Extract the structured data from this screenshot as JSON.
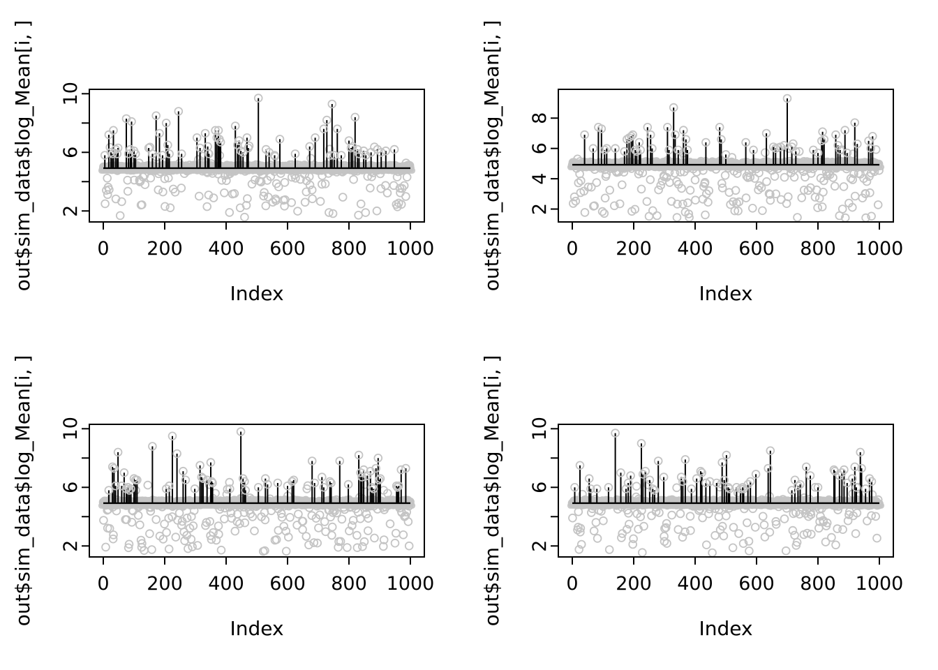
{
  "figure_title": "",
  "colors": {
    "background": "#ffffff",
    "axis": "#000000",
    "text": "#000000",
    "spike": "#000000",
    "point_gray": "#c4c4c4",
    "band_gray": "#cacaca"
  },
  "layout_labels": {
    "x_axis_title": "Index",
    "y_axis_title": "out$sim_data$log_Mean[i, ]"
  },
  "chart_data": [
    {
      "name": "top-left",
      "type": "scatter",
      "style": "spikes-with-open-circles",
      "xlabel": "Index",
      "ylabel": "out$sim_data$log_Mean[i, ]",
      "xlim": [
        0,
        1000
      ],
      "ylim": [
        1.25,
        10.3
      ],
      "x_ticks": [
        0,
        200,
        400,
        600,
        800,
        1000
      ],
      "x_tick_labels": [
        "0",
        "200",
        "400",
        "600",
        "800",
        "1000"
      ],
      "y_ticks": [
        2,
        4,
        6,
        8,
        10
      ],
      "y_tick_labels": [
        "2",
        "",
        "6",
        "",
        "10"
      ],
      "grid": false,
      "legend": "none",
      "baseline": 4.97,
      "n_points": 1000,
      "spikes": [
        [
          5,
          5.8
        ],
        [
          18,
          7.2
        ],
        [
          25,
          6.0
        ],
        [
          30,
          5.9
        ],
        [
          33,
          7.5
        ],
        [
          40,
          6.2
        ],
        [
          45,
          5.9
        ],
        [
          48,
          6.3
        ],
        [
          75,
          8.3
        ],
        [
          82,
          5.9
        ],
        [
          88,
          6.2
        ],
        [
          92,
          8.1
        ],
        [
          100,
          6.1
        ],
        [
          105,
          5.9
        ],
        [
          148,
          6.3
        ],
        [
          160,
          5.9
        ],
        [
          172,
          8.5
        ],
        [
          183,
          7.3
        ],
        [
          193,
          5.8
        ],
        [
          205,
          8.0
        ],
        [
          210,
          6.5
        ],
        [
          215,
          5.9
        ],
        [
          245,
          8.8
        ],
        [
          255,
          5.9
        ],
        [
          305,
          7.0
        ],
        [
          315,
          6.3
        ],
        [
          332,
          7.3
        ],
        [
          340,
          6.4
        ],
        [
          344,
          5.9
        ],
        [
          365,
          7.5
        ],
        [
          370,
          7.0
        ],
        [
          375,
          7.5
        ],
        [
          378,
          6.9
        ],
        [
          382,
          6.7
        ],
        [
          430,
          7.8
        ],
        [
          437,
          6.5
        ],
        [
          442,
          6.8
        ],
        [
          448,
          6.1
        ],
        [
          455,
          6.0
        ],
        [
          468,
          7.0
        ],
        [
          472,
          6.3
        ],
        [
          505,
          9.7
        ],
        [
          530,
          6.2
        ],
        [
          540,
          6.0
        ],
        [
          558,
          5.8
        ],
        [
          575,
          6.9
        ],
        [
          625,
          5.9
        ],
        [
          672,
          6.4
        ],
        [
          690,
          7.0
        ],
        [
          718,
          7.6
        ],
        [
          728,
          8.2
        ],
        [
          740,
          5.8
        ],
        [
          745,
          9.3
        ],
        [
          752,
          5.8
        ],
        [
          762,
          7.6
        ],
        [
          775,
          5.8
        ],
        [
          800,
          6.8
        ],
        [
          807,
          6.3
        ],
        [
          812,
          6.4
        ],
        [
          820,
          8.4
        ],
        [
          828,
          6.2
        ],
        [
          833,
          5.9
        ],
        [
          848,
          6.1
        ],
        [
          855,
          5.8
        ],
        [
          872,
          6.0
        ],
        [
          893,
          6.2
        ],
        [
          905,
          6.0
        ],
        [
          920,
          6.1
        ],
        [
          948,
          6.2
        ]
      ],
      "scatter": {
        "seed": 11,
        "p_below": 0.16,
        "below_base": 4.72,
        "below_spread": 3.2,
        "below_power": 1.7,
        "p_above": 0.022,
        "above_spread": 1.3,
        "band_center": 4.95,
        "band_jitter": 0.14
      }
    },
    {
      "name": "top-right",
      "type": "scatter",
      "style": "spikes-with-open-circles",
      "xlabel": "Index",
      "ylabel": "out$sim_data$log_Mean[i, ]",
      "xlim": [
        0,
        1000
      ],
      "ylim": [
        1.15,
        9.9
      ],
      "x_ticks": [
        0,
        200,
        400,
        600,
        800,
        1000
      ],
      "x_tick_labels": [
        "0",
        "200",
        "400",
        "600",
        "800",
        "1000"
      ],
      "y_ticks": [
        2,
        4,
        6,
        8
      ],
      "y_tick_labels": [
        "2",
        "4",
        "6",
        "8"
      ],
      "grid": false,
      "legend": "none",
      "baseline": 4.97,
      "n_points": 1000,
      "spikes": [
        [
          40,
          6.9
        ],
        [
          68,
          6.0
        ],
        [
          85,
          7.4
        ],
        [
          95,
          7.3
        ],
        [
          105,
          5.9
        ],
        [
          112,
          6.0
        ],
        [
          140,
          6.0
        ],
        [
          170,
          5.8
        ],
        [
          178,
          6.6
        ],
        [
          185,
          6.7
        ],
        [
          192,
          6.8
        ],
        [
          197,
          6.9
        ],
        [
          205,
          5.9
        ],
        [
          210,
          5.8
        ],
        [
          218,
          6.4
        ],
        [
          222,
          5.9
        ],
        [
          245,
          7.4
        ],
        [
          255,
          6.9
        ],
        [
          260,
          6.0
        ],
        [
          310,
          7.4
        ],
        [
          315,
          5.9
        ],
        [
          330,
          8.7
        ],
        [
          335,
          6.9
        ],
        [
          345,
          5.9
        ],
        [
          362,
          7.2
        ],
        [
          370,
          6.6
        ],
        [
          375,
          5.9
        ],
        [
          435,
          6.4
        ],
        [
          480,
          7.4
        ],
        [
          485,
          6.6
        ],
        [
          500,
          5.6
        ],
        [
          565,
          6.4
        ],
        [
          590,
          5.9
        ],
        [
          632,
          7.0
        ],
        [
          655,
          6.1
        ],
        [
          662,
          6.0
        ],
        [
          678,
          6.1
        ],
        [
          690,
          6.2
        ],
        [
          700,
          9.3
        ],
        [
          715,
          6.1
        ],
        [
          728,
          5.8
        ],
        [
          785,
          5.9
        ],
        [
          800,
          5.7
        ],
        [
          812,
          6.5
        ],
        [
          815,
          7.1
        ],
        [
          820,
          6.6
        ],
        [
          858,
          6.9
        ],
        [
          865,
          6.2
        ],
        [
          872,
          5.9
        ],
        [
          888,
          7.2
        ],
        [
          895,
          5.7
        ],
        [
          920,
          7.7
        ],
        [
          928,
          6.3
        ],
        [
          965,
          6.5
        ],
        [
          972,
          6.0
        ],
        [
          978,
          6.8
        ]
      ],
      "scatter": {
        "seed": 22,
        "p_below": 0.17,
        "below_base": 4.7,
        "below_spread": 3.3,
        "below_power": 1.6,
        "p_above": 0.02,
        "above_spread": 1.2,
        "band_center": 4.95,
        "band_jitter": 0.14
      }
    },
    {
      "name": "bottom-left",
      "type": "scatter",
      "style": "spikes-with-open-circles",
      "xlabel": "Index",
      "ylabel": "out$sim_data$log_Mean[i, ]",
      "xlim": [
        0,
        1000
      ],
      "ylim": [
        1.25,
        10.3
      ],
      "x_ticks": [
        0,
        200,
        400,
        600,
        800,
        1000
      ],
      "x_tick_labels": [
        "0",
        "200",
        "400",
        "600",
        "800",
        "1000"
      ],
      "y_ticks": [
        2,
        4,
        6,
        8,
        10
      ],
      "y_tick_labels": [
        "2",
        "",
        "6",
        "",
        "10"
      ],
      "grid": false,
      "legend": "none",
      "baseline": 4.97,
      "n_points": 1000,
      "spikes": [
        [
          18,
          5.8
        ],
        [
          30,
          7.4
        ],
        [
          35,
          7.3
        ],
        [
          40,
          6.1
        ],
        [
          48,
          8.4
        ],
        [
          60,
          6.1
        ],
        [
          68,
          7.0
        ],
        [
          75,
          5.9
        ],
        [
          80,
          6.0
        ],
        [
          85,
          5.8
        ],
        [
          90,
          5.9
        ],
        [
          100,
          6.6
        ],
        [
          105,
          6.5
        ],
        [
          110,
          6.5
        ],
        [
          160,
          8.8
        ],
        [
          205,
          5.9
        ],
        [
          215,
          6.1
        ],
        [
          225,
          9.5
        ],
        [
          240,
          8.3
        ],
        [
          260,
          7.1
        ],
        [
          268,
          6.5
        ],
        [
          298,
          5.9
        ],
        [
          315,
          7.5
        ],
        [
          320,
          6.7
        ],
        [
          325,
          6.6
        ],
        [
          338,
          6.5
        ],
        [
          350,
          7.7
        ],
        [
          353,
          6.4
        ],
        [
          356,
          6.3
        ],
        [
          412,
          5.9
        ],
        [
          448,
          9.8
        ],
        [
          455,
          6.6
        ],
        [
          460,
          6.4
        ],
        [
          463,
          5.8
        ],
        [
          505,
          6.0
        ],
        [
          528,
          6.6
        ],
        [
          535,
          6.2
        ],
        [
          568,
          6.3
        ],
        [
          600,
          6.1
        ],
        [
          615,
          6.4
        ],
        [
          620,
          6.5
        ],
        [
          680,
          7.8
        ],
        [
          688,
          6.3
        ],
        [
          712,
          6.7
        ],
        [
          718,
          6.0
        ],
        [
          738,
          6.4
        ],
        [
          742,
          6.3
        ],
        [
          770,
          7.8
        ],
        [
          798,
          6.2
        ],
        [
          832,
          8.2
        ],
        [
          838,
          7.0
        ],
        [
          842,
          6.7
        ],
        [
          848,
          7.2
        ],
        [
          860,
          6.8
        ],
        [
          870,
          7.1
        ],
        [
          875,
          6.0
        ],
        [
          880,
          5.9
        ],
        [
          888,
          7.3
        ],
        [
          895,
          8.0
        ],
        [
          898,
          6.5
        ],
        [
          902,
          6.6
        ],
        [
          955,
          6.1
        ],
        [
          958,
          6.0
        ],
        [
          962,
          6.1
        ],
        [
          970,
          7.2
        ],
        [
          985,
          7.3
        ]
      ],
      "scatter": {
        "seed": 33,
        "p_below": 0.17,
        "below_base": 4.72,
        "below_spread": 3.1,
        "below_power": 1.7,
        "p_above": 0.022,
        "above_spread": 1.2,
        "band_center": 4.95,
        "band_jitter": 0.14
      }
    },
    {
      "name": "bottom-right",
      "type": "scatter",
      "style": "spikes-with-open-circles",
      "xlabel": "Index",
      "ylabel": "out$sim_data$log_Mean[i, ]",
      "xlim": [
        0,
        1000
      ],
      "ylim": [
        1.25,
        10.3
      ],
      "x_ticks": [
        0,
        200,
        400,
        600,
        800,
        1000
      ],
      "x_tick_labels": [
        "0",
        "200",
        "400",
        "600",
        "800",
        "1000"
      ],
      "y_ticks": [
        2,
        4,
        6,
        8,
        10
      ],
      "y_tick_labels": [
        "2",
        "",
        "6",
        "",
        "10"
      ],
      "grid": false,
      "legend": "none",
      "baseline": 4.97,
      "n_points": 1000,
      "spikes": [
        [
          8,
          6.0
        ],
        [
          25,
          7.5
        ],
        [
          55,
          6.6
        ],
        [
          60,
          5.9
        ],
        [
          80,
          5.9
        ],
        [
          118,
          6.0
        ],
        [
          140,
          9.7
        ],
        [
          158,
          7.0
        ],
        [
          175,
          5.9
        ],
        [
          182,
          6.3
        ],
        [
          190,
          6.8
        ],
        [
          225,
          9.0
        ],
        [
          230,
          6.9
        ],
        [
          238,
          7.1
        ],
        [
          252,
          6.5
        ],
        [
          262,
          5.9
        ],
        [
          268,
          5.8
        ],
        [
          280,
          7.8
        ],
        [
          298,
          6.7
        ],
        [
          355,
          6.7
        ],
        [
          360,
          6.4
        ],
        [
          368,
          7.9
        ],
        [
          388,
          5.9
        ],
        [
          405,
          6.6
        ],
        [
          418,
          7.1
        ],
        [
          422,
          7.0
        ],
        [
          435,
          6.3
        ],
        [
          448,
          6.4
        ],
        [
          470,
          6.3
        ],
        [
          488,
          7.7
        ],
        [
          495,
          6.5
        ],
        [
          502,
          8.2
        ],
        [
          508,
          6.0
        ],
        [
          512,
          5.9
        ],
        [
          535,
          6.0
        ],
        [
          548,
          5.9
        ],
        [
          555,
          6.0
        ],
        [
          558,
          5.9
        ],
        [
          572,
          6.2
        ],
        [
          580,
          6.4
        ],
        [
          598,
          6.9
        ],
        [
          638,
          7.3
        ],
        [
          645,
          8.5
        ],
        [
          715,
          5.8
        ],
        [
          725,
          6.5
        ],
        [
          735,
          6.1
        ],
        [
          742,
          6.2
        ],
        [
          762,
          7.4
        ],
        [
          775,
          6.8
        ],
        [
          800,
          6.0
        ],
        [
          852,
          7.2
        ],
        [
          855,
          7.1
        ],
        [
          870,
          6.8
        ],
        [
          878,
          7.0
        ],
        [
          885,
          7.2
        ],
        [
          895,
          6.3
        ],
        [
          912,
          6.6
        ],
        [
          920,
          7.4
        ],
        [
          925,
          6.0
        ],
        [
          938,
          8.4
        ],
        [
          942,
          7.3
        ],
        [
          955,
          5.9
        ],
        [
          968,
          6.6
        ],
        [
          975,
          6.4
        ]
      ],
      "scatter": {
        "seed": 44,
        "p_below": 0.17,
        "below_base": 4.72,
        "below_spread": 3.2,
        "below_power": 1.7,
        "p_above": 0.022,
        "above_spread": 1.2,
        "band_center": 4.95,
        "band_jitter": 0.14
      }
    }
  ]
}
